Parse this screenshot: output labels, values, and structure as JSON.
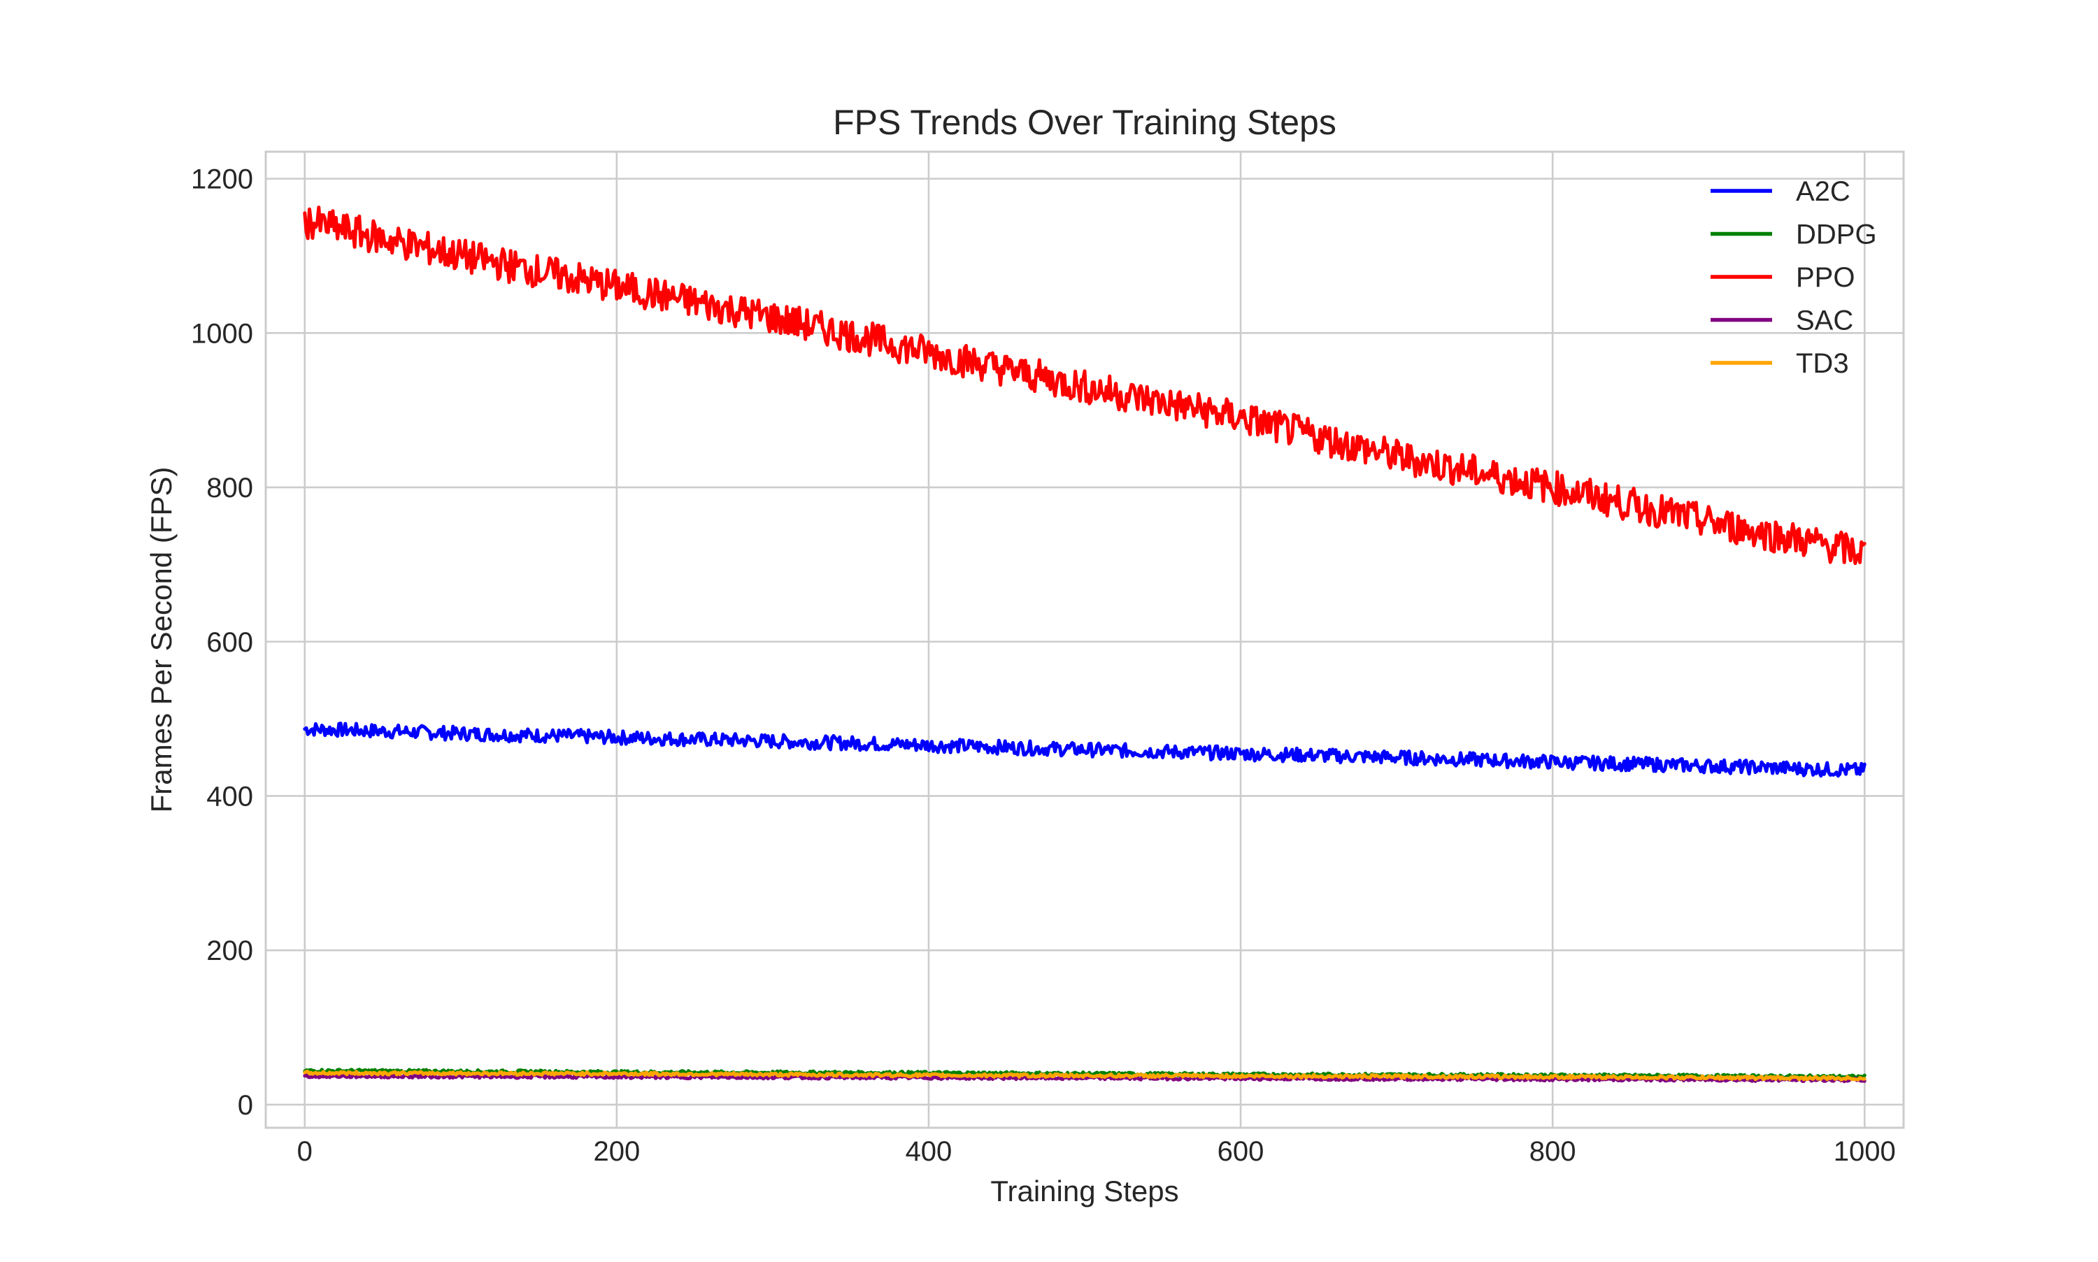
{
  "chart_data": {
    "type": "line",
    "title": "FPS Trends Over Training Steps",
    "xlabel": "Training Steps",
    "ylabel": "Frames Per Second (FPS)",
    "xlim": [
      -25,
      1025
    ],
    "ylim": [
      -30,
      1235
    ],
    "xticks": [
      0,
      200,
      400,
      600,
      800,
      1000
    ],
    "yticks": [
      0,
      200,
      400,
      600,
      800,
      1000,
      1200
    ],
    "grid": true,
    "legend_position": "top-right",
    "x_range": [
      0,
      1000
    ],
    "series": [
      {
        "name": "A2C",
        "color": "#0000ff",
        "x": [
          0,
          100,
          200,
          300,
          400,
          500,
          600,
          700,
          800,
          900,
          1000
        ],
        "values": [
          487,
          481,
          476,
          471,
          466,
          460,
          455,
          450,
          444,
          439,
          433
        ],
        "noise_amplitude": 9
      },
      {
        "name": "DDPG",
        "color": "#008000",
        "x": [
          0,
          200,
          400,
          600,
          800,
          1000
        ],
        "values": [
          44,
          42,
          41,
          39,
          38,
          36
        ],
        "noise_amplitude": 2
      },
      {
        "name": "PPO",
        "color": "#ff0000",
        "x": [
          0,
          100,
          200,
          300,
          400,
          500,
          600,
          700,
          800,
          900,
          1000
        ],
        "values": [
          1145,
          1100,
          1060,
          1020,
          975,
          930,
          890,
          840,
          800,
          755,
          715
        ],
        "noise_amplitude": 22
      },
      {
        "name": "SAC",
        "color": "#800080",
        "x": [
          0,
          200,
          400,
          600,
          800,
          1000
        ],
        "values": [
          37,
          36,
          35,
          34,
          33,
          32
        ],
        "noise_amplitude": 2
      },
      {
        "name": "TD3",
        "color": "#ffa500",
        "x": [
          0,
          200,
          400,
          600,
          800,
          1000
        ],
        "values": [
          41,
          40,
          38,
          37,
          36,
          34
        ],
        "noise_amplitude": 2
      }
    ]
  }
}
